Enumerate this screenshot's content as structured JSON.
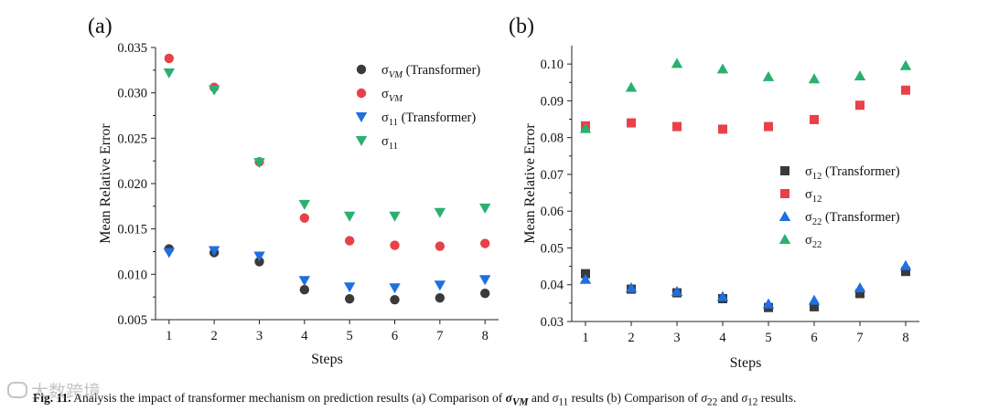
{
  "chart_data": [
    {
      "type": "scatter",
      "panel_label": "(a)",
      "xlabel": "Steps",
      "ylabel": "Mean Relative Error",
      "x": [
        1,
        2,
        3,
        4,
        5,
        6,
        7,
        8
      ],
      "xlim": [
        0.7,
        8.3
      ],
      "ylim": [
        0.005,
        0.035
      ],
      "y_ticks": [
        0.005,
        0.01,
        0.015,
        0.02,
        0.025,
        0.03,
        0.035
      ],
      "y_tick_labels": [
        "0.005",
        "0.010",
        "0.015",
        "0.020",
        "0.025",
        "0.030",
        "0.035"
      ],
      "x_tick_labels": [
        "1",
        "2",
        "3",
        "4",
        "5",
        "6",
        "7",
        "8"
      ],
      "legend_position": "top-right",
      "series": [
        {
          "name": "σ_VM (Transformer)",
          "symbol": "σ",
          "sub": "VM",
          "sub_italic": true,
          "suffix": " (Transformer)",
          "marker": "circle",
          "color": "#3a3a3a",
          "values": [
            0.0128,
            0.0124,
            0.0114,
            0.0083,
            0.0073,
            0.0072,
            0.0074,
            0.0079
          ]
        },
        {
          "name": "σ_VM",
          "symbol": "σ",
          "sub": "VM",
          "sub_italic": true,
          "suffix": "",
          "marker": "circle",
          "color": "#e8414a",
          "values": [
            0.0338,
            0.0306,
            0.0224,
            0.0162,
            0.0137,
            0.0132,
            0.0131,
            0.0134
          ]
        },
        {
          "name": "σ_11 (Transformer)",
          "symbol": "σ",
          "sub": "11",
          "sub_italic": false,
          "suffix": " (Transformer)",
          "marker": "triangle-down",
          "color": "#1f6fe0",
          "values": [
            0.0124,
            0.0126,
            0.012,
            0.0093,
            0.0086,
            0.0085,
            0.0088,
            0.0094
          ]
        },
        {
          "name": "σ_11",
          "symbol": "σ",
          "sub": "11",
          "sub_italic": false,
          "suffix": "",
          "marker": "triangle-down",
          "color": "#2ab06f",
          "values": [
            0.0322,
            0.0303,
            0.0223,
            0.0177,
            0.0164,
            0.0164,
            0.0168,
            0.0173
          ]
        }
      ]
    },
    {
      "type": "scatter",
      "panel_label": "(b)",
      "xlabel": "Steps",
      "ylabel": "Mean Relative Error",
      "x": [
        1,
        2,
        3,
        4,
        5,
        6,
        7,
        8
      ],
      "xlim": [
        0.7,
        8.3
      ],
      "ylim": [
        0.03,
        0.105
      ],
      "y_ticks": [
        0.03,
        0.04,
        0.05,
        0.06,
        0.07,
        0.08,
        0.09,
        0.1
      ],
      "y_tick_labels": [
        "0.03",
        "0.04",
        "0.05",
        "0.06",
        "0.07",
        "0.08",
        "0.09",
        "0.10"
      ],
      "x_tick_labels": [
        "1",
        "2",
        "3",
        "4",
        "5",
        "6",
        "7",
        "8"
      ],
      "legend_position": "center-right",
      "series": [
        {
          "name": "σ_12 (Transformer)",
          "symbol": "σ",
          "sub": "12",
          "sub_italic": false,
          "suffix": " (Transformer)",
          "marker": "square",
          "color": "#3a3a3a",
          "values": [
            0.043,
            0.0388,
            0.0378,
            0.0362,
            0.0338,
            0.034,
            0.0376,
            0.0436
          ]
        },
        {
          "name": "σ_12",
          "symbol": "σ",
          "sub": "12",
          "sub_italic": false,
          "suffix": "",
          "marker": "square",
          "color": "#e8414a",
          "values": [
            0.0832,
            0.084,
            0.083,
            0.0823,
            0.083,
            0.0849,
            0.0888,
            0.0929
          ]
        },
        {
          "name": "σ_22 (Transformer)",
          "symbol": "σ",
          "sub": "22",
          "sub_italic": false,
          "suffix": " (Transformer)",
          "marker": "triangle-up",
          "color": "#1f6fe0",
          "values": [
            0.0415,
            0.0392,
            0.0382,
            0.0368,
            0.0348,
            0.0358,
            0.0392,
            0.0452
          ]
        },
        {
          "name": "σ_22",
          "symbol": "σ",
          "sub": "22",
          "sub_italic": false,
          "suffix": "",
          "marker": "triangle-up",
          "color": "#2ab06f",
          "values": [
            0.0825,
            0.0937,
            0.1002,
            0.0987,
            0.0966,
            0.096,
            0.0968,
            0.0996
          ]
        }
      ]
    }
  ],
  "caption": {
    "prefix": "Fig. 11.",
    "t1": " Analysis the impact of transformer mechanism on prediction results (a) Comparison of ",
    "m1": "σ",
    "m1_sub": "VM",
    "t2": " and ",
    "m2": "σ",
    "m2_sub": "11",
    "t3": " results (b) Comparison of ",
    "m3": "σ",
    "m3_sub": "22",
    "t4": " and ",
    "m4": "σ",
    "m4_sub": "12",
    "t5": " results."
  },
  "watermark": "大数跨境"
}
